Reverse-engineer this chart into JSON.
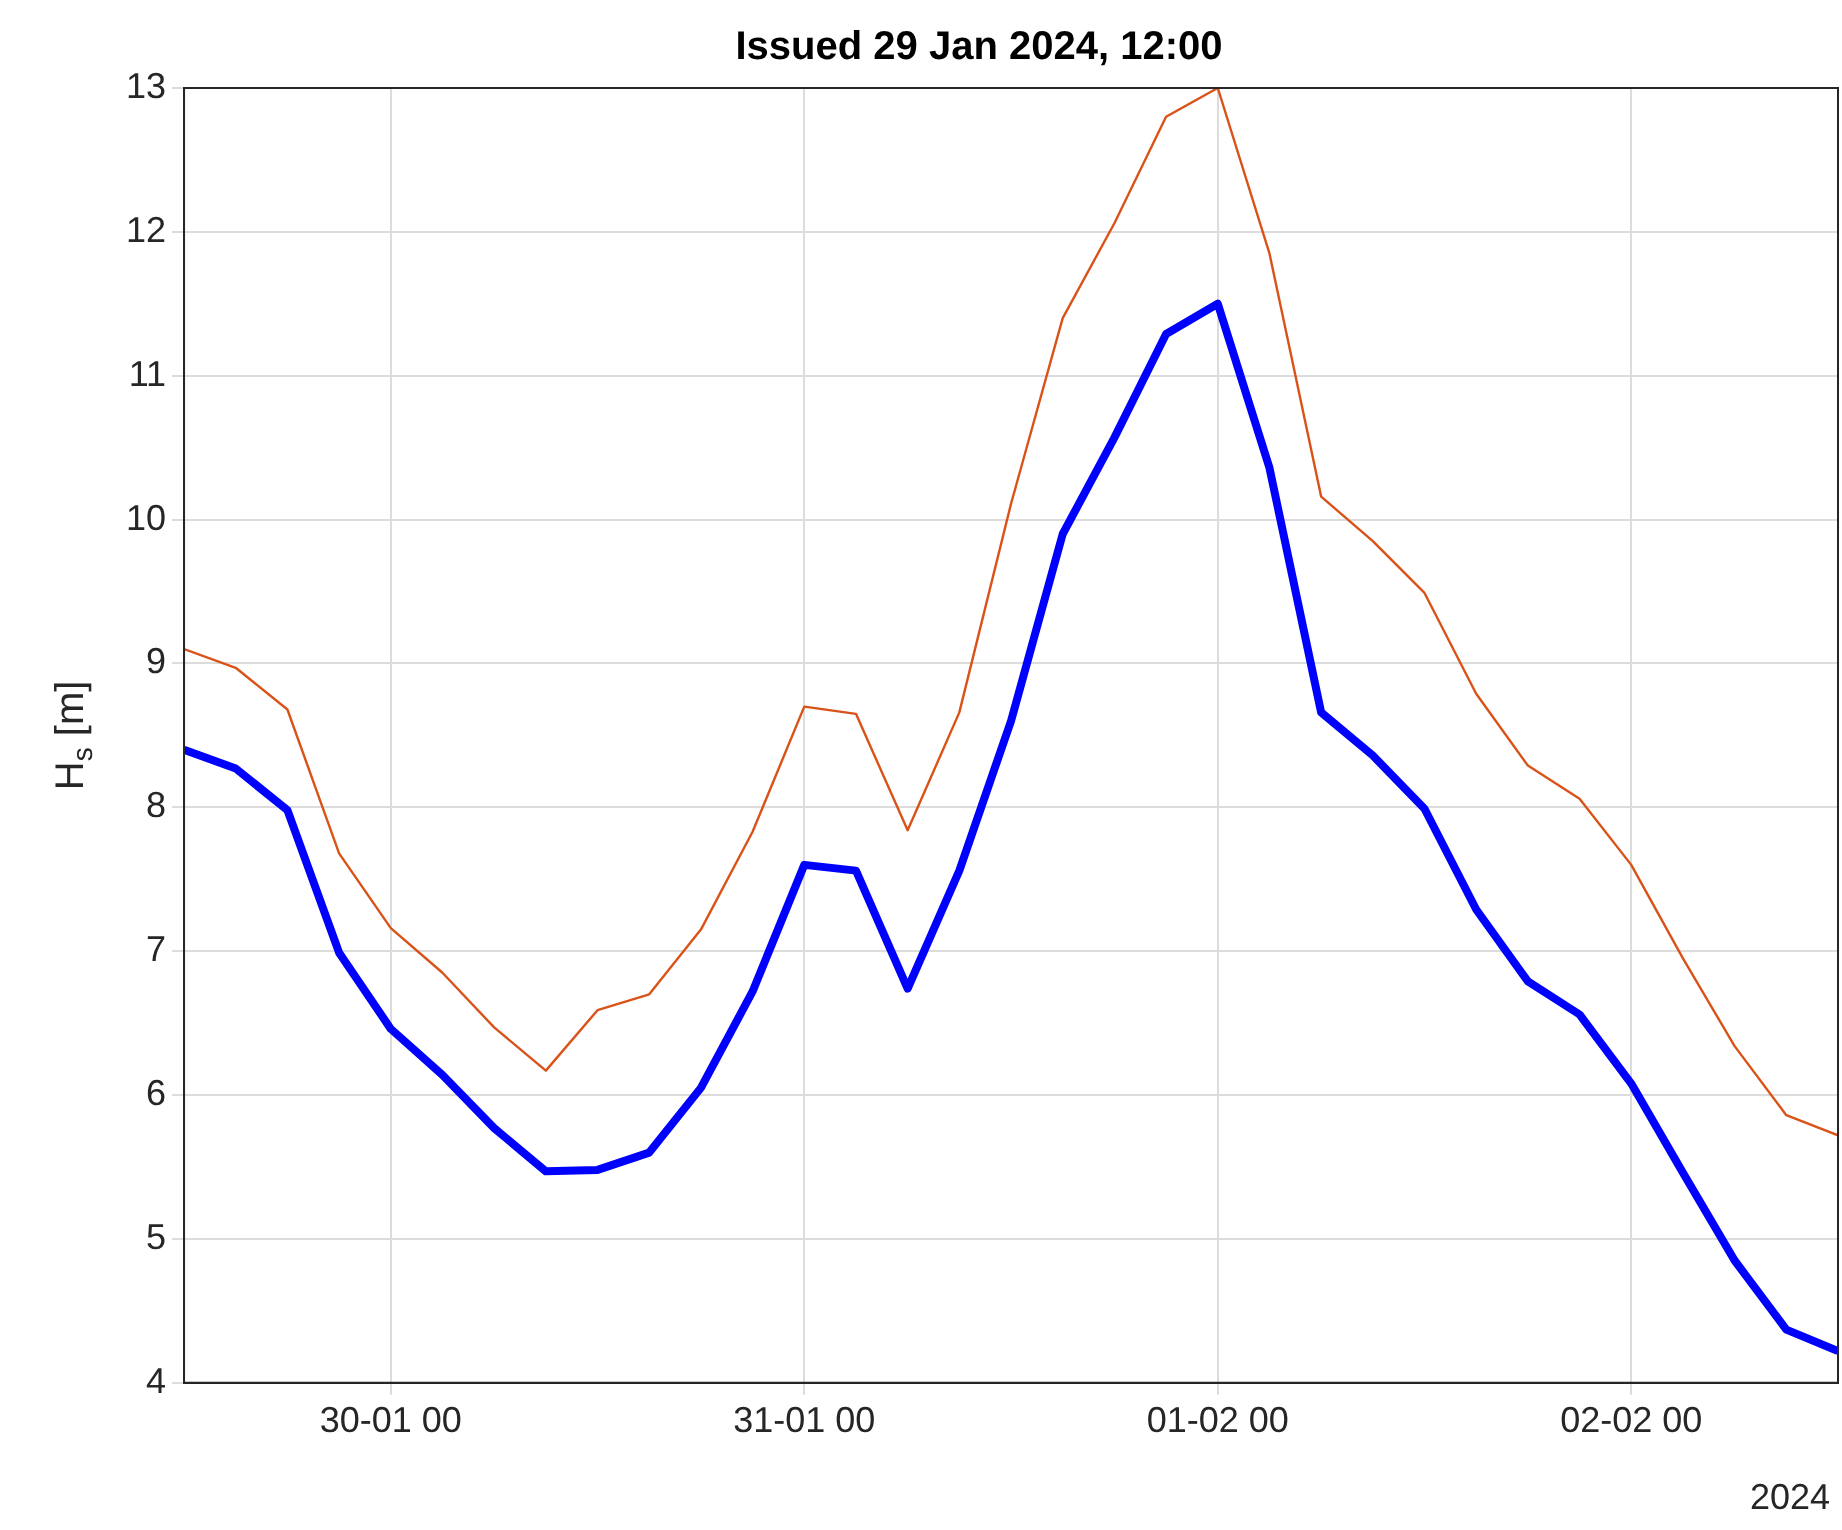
{
  "chart_data": {
    "type": "line",
    "title": "Issued 29 Jan 2024, 12:00",
    "ylabel": "H$_{s}$ [m]",
    "x": [
      "2024-01-29T12:00",
      "2024-01-29T15:00",
      "2024-01-29T18:00",
      "2024-01-29T21:00",
      "2024-01-30T00:00",
      "2024-01-30T03:00",
      "2024-01-30T06:00",
      "2024-01-30T09:00",
      "2024-01-30T12:00",
      "2024-01-30T15:00",
      "2024-01-30T18:00",
      "2024-01-30T21:00",
      "2024-01-31T00:00",
      "2024-01-31T03:00",
      "2024-01-31T06:00",
      "2024-01-31T09:00",
      "2024-01-31T12:00",
      "2024-01-31T15:00",
      "2024-01-31T18:00",
      "2024-01-31T21:00",
      "2024-02-01T00:00",
      "2024-02-01T03:00",
      "2024-02-01T06:00",
      "2024-02-01T09:00",
      "2024-02-01T12:00",
      "2024-02-01T15:00",
      "2024-02-01T18:00",
      "2024-02-01T21:00",
      "2024-02-02T00:00",
      "2024-02-02T03:00",
      "2024-02-02T06:00",
      "2024-02-02T09:00",
      "2024-02-02T12:00"
    ],
    "series": [
      {
        "color": "#d95319",
        "values": [
          9.1,
          8.97,
          8.68,
          7.68,
          7.16,
          6.85,
          6.47,
          6.17,
          6.59,
          6.7,
          7.15,
          7.83,
          8.7,
          8.65,
          7.84,
          8.66,
          10.11,
          11.4,
          12.06,
          12.8,
          13.0,
          11.85,
          10.16,
          9.85,
          9.49,
          8.79,
          8.29,
          8.06,
          7.6,
          6.95,
          6.34,
          5.86,
          5.72
        ]
      },
      {
        "color": "#0000ff",
        "values": [
          8.4,
          8.27,
          7.98,
          6.99,
          6.46,
          6.14,
          5.77,
          5.47,
          5.48,
          5.6,
          6.05,
          6.72,
          7.6,
          7.56,
          6.74,
          7.56,
          8.6,
          9.9,
          10.57,
          11.29,
          11.5,
          10.36,
          8.66,
          8.36,
          7.99,
          7.29,
          6.79,
          6.56,
          6.08,
          5.46,
          4.85,
          4.37,
          4.22
        ]
      }
    ],
    "xlim": [
      "2024-01-29T12:00",
      "2024-02-02T12:00"
    ],
    "xticks": [
      {
        "value": "2024-01-30T00:00",
        "label": "30-01 00"
      },
      {
        "value": "2024-01-31T00:00",
        "label": "31-01 00"
      },
      {
        "value": "2024-02-01T00:00",
        "label": "01-02 00"
      },
      {
        "value": "2024-02-02T00:00",
        "label": "02-02 00"
      }
    ],
    "ylim": [
      4,
      13
    ],
    "yticks": [
      4,
      5,
      6,
      7,
      8,
      9,
      10,
      11,
      12,
      13
    ],
    "grid": true,
    "legend": false,
    "marker": "none",
    "line_style": "solid",
    "annotations": [
      "2024"
    ]
  }
}
